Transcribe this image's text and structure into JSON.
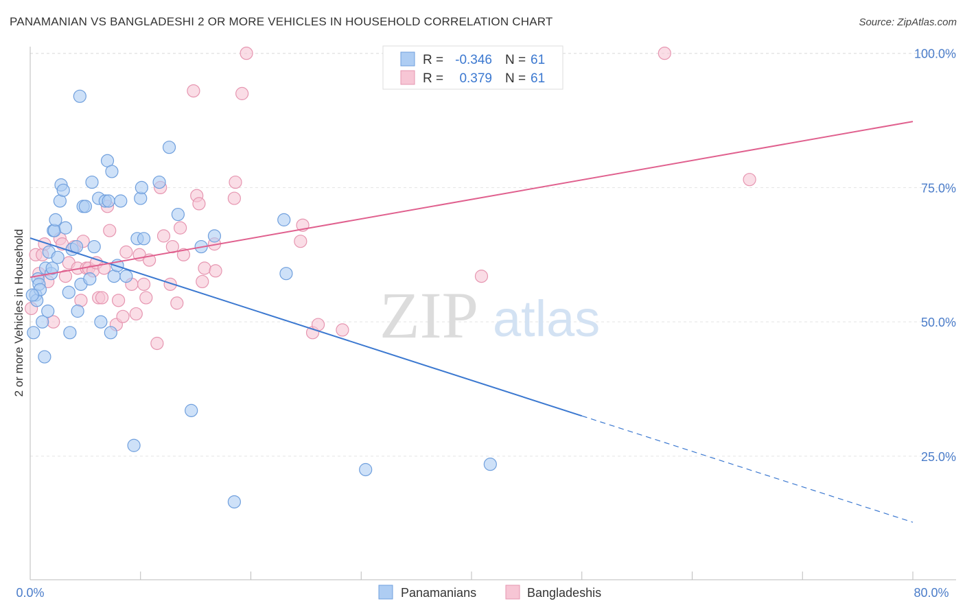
{
  "header": {
    "title": "PANAMANIAN VS BANGLADESHI 2 OR MORE VEHICLES IN HOUSEHOLD CORRELATION CHART",
    "source": "Source: ZipAtlas.com"
  },
  "watermark": {
    "zip": "ZIP",
    "atlas": "atlas"
  },
  "colors": {
    "panamanian_fill": "#aecdf3",
    "panamanian_stroke": "#6f9fdd",
    "panamanian_line": "#3b78d0",
    "bangladeshi_fill": "#f7c6d5",
    "bangladeshi_stroke": "#e695b0",
    "bangladeshi_line": "#e0608e",
    "axis_label": "#4a7cc9",
    "grid": "#e3e3e3"
  },
  "legend_top": {
    "rows": [
      {
        "r_label": "R = ",
        "r_value": "-0.346",
        "n_label": "N = ",
        "n_value": "61"
      },
      {
        "r_label": "R = ",
        "r_value": "0.379",
        "n_label": "N = ",
        "n_value": "61"
      }
    ]
  },
  "legend_bottom": {
    "items": [
      "Panamanians",
      "Bangladeshis"
    ]
  },
  "chart_data": {
    "type": "scatter",
    "title": "PANAMANIAN VS BANGLADESHI 2 OR MORE VEHICLES IN HOUSEHOLD CORRELATION CHART",
    "xlabel": "",
    "ylabel": "2 or more Vehicles in Household",
    "xlim": [
      0,
      80
    ],
    "ylim": [
      2,
      102
    ],
    "x_tick_labels": [
      "0.0%",
      "80.0%"
    ],
    "y_ticks": [
      25,
      50,
      75,
      100
    ],
    "y_tick_labels": [
      "25.0%",
      "50.0%",
      "75.0%",
      "100.0%"
    ],
    "grid": true,
    "series": [
      {
        "name": "Panamanians",
        "r": -0.346,
        "n": 61,
        "trend": {
          "x0": 0,
          "y0": 65.6,
          "x1": 50,
          "y1": 32.5,
          "dash_to_x": 80,
          "dash_to_y": 12.7
        },
        "points": [
          [
            0.3,
            48
          ],
          [
            0.5,
            55
          ],
          [
            0.6,
            54
          ],
          [
            0.7,
            58
          ],
          [
            0.8,
            57
          ],
          [
            0.9,
            56
          ],
          [
            1.1,
            50
          ],
          [
            1.3,
            43.5
          ],
          [
            1.4,
            60
          ],
          [
            1.6,
            52
          ],
          [
            1.7,
            63
          ],
          [
            1.9,
            59
          ],
          [
            2.0,
            60
          ],
          [
            2.1,
            67
          ],
          [
            2.2,
            67
          ],
          [
            2.3,
            69
          ],
          [
            2.5,
            62
          ],
          [
            2.7,
            72.5
          ],
          [
            2.8,
            75.5
          ],
          [
            3.0,
            74.5
          ],
          [
            3.2,
            67.5
          ],
          [
            3.5,
            55.5
          ],
          [
            3.6,
            48
          ],
          [
            3.8,
            63.5
          ],
          [
            4.2,
            64
          ],
          [
            4.3,
            52
          ],
          [
            4.5,
            92
          ],
          [
            4.6,
            57
          ],
          [
            4.8,
            71.5
          ],
          [
            5.0,
            71.5
          ],
          [
            5.4,
            58
          ],
          [
            5.6,
            76
          ],
          [
            5.8,
            64
          ],
          [
            6.2,
            73
          ],
          [
            6.4,
            50
          ],
          [
            6.8,
            72.5
          ],
          [
            7.0,
            80
          ],
          [
            7.1,
            72.5
          ],
          [
            7.3,
            48
          ],
          [
            7.4,
            78
          ],
          [
            7.6,
            58.5
          ],
          [
            7.9,
            60.5
          ],
          [
            8.2,
            72.5
          ],
          [
            8.7,
            58.5
          ],
          [
            9.4,
            27
          ],
          [
            9.7,
            65.5
          ],
          [
            10.0,
            73
          ],
          [
            10.1,
            75
          ],
          [
            10.3,
            65.5
          ],
          [
            11.7,
            76
          ],
          [
            12.6,
            82.5
          ],
          [
            13.4,
            70
          ],
          [
            14.6,
            33.5
          ],
          [
            15.5,
            64
          ],
          [
            16.7,
            66
          ],
          [
            18.5,
            16.5
          ],
          [
            23.0,
            69
          ],
          [
            23.2,
            59
          ],
          [
            30.4,
            22.5
          ],
          [
            41.7,
            23.5
          ],
          [
            0.2,
            55
          ]
        ]
      },
      {
        "name": "Bangladeshis",
        "r": 0.379,
        "n": 61,
        "trend": {
          "x0": 0,
          "y0": 58.3,
          "x1": 80,
          "y1": 87.3
        },
        "points": [
          [
            0.1,
            52.5
          ],
          [
            0.5,
            62.5
          ],
          [
            0.8,
            59
          ],
          [
            1.1,
            62.5
          ],
          [
            1.3,
            64.5
          ],
          [
            1.6,
            57.5
          ],
          [
            2.1,
            50
          ],
          [
            2.7,
            65.5
          ],
          [
            2.9,
            64.5
          ],
          [
            3.2,
            58.5
          ],
          [
            3.5,
            61
          ],
          [
            4.0,
            64
          ],
          [
            4.3,
            60
          ],
          [
            4.6,
            54
          ],
          [
            4.8,
            65
          ],
          [
            5.1,
            60
          ],
          [
            5.3,
            60
          ],
          [
            5.7,
            59.5
          ],
          [
            6.0,
            61
          ],
          [
            6.2,
            54.5
          ],
          [
            6.5,
            54.5
          ],
          [
            6.7,
            60
          ],
          [
            7.0,
            71.5
          ],
          [
            7.2,
            67
          ],
          [
            7.8,
            49.5
          ],
          [
            8.0,
            54
          ],
          [
            8.4,
            51
          ],
          [
            8.7,
            63
          ],
          [
            9.2,
            57
          ],
          [
            9.6,
            51.5
          ],
          [
            9.9,
            62.5
          ],
          [
            10.3,
            57
          ],
          [
            10.5,
            54.5
          ],
          [
            10.8,
            61.5
          ],
          [
            11.5,
            46
          ],
          [
            11.8,
            75
          ],
          [
            12.1,
            66
          ],
          [
            12.7,
            57
          ],
          [
            12.9,
            64
          ],
          [
            13.3,
            53.5
          ],
          [
            13.6,
            67.5
          ],
          [
            13.9,
            62.5
          ],
          [
            14.8,
            93
          ],
          [
            15.1,
            73.5
          ],
          [
            15.3,
            72
          ],
          [
            15.6,
            57.5
          ],
          [
            15.8,
            60
          ],
          [
            16.7,
            64.5
          ],
          [
            16.8,
            59.5
          ],
          [
            18.5,
            73
          ],
          [
            18.6,
            76
          ],
          [
            19.2,
            92.5
          ],
          [
            19.6,
            100
          ],
          [
            24.5,
            65
          ],
          [
            24.7,
            68
          ],
          [
            25.6,
            48
          ],
          [
            26.1,
            49.5
          ],
          [
            28.3,
            48.5
          ],
          [
            40.9,
            58.5
          ],
          [
            57.5,
            100
          ],
          [
            65.2,
            76.5
          ]
        ]
      }
    ]
  }
}
